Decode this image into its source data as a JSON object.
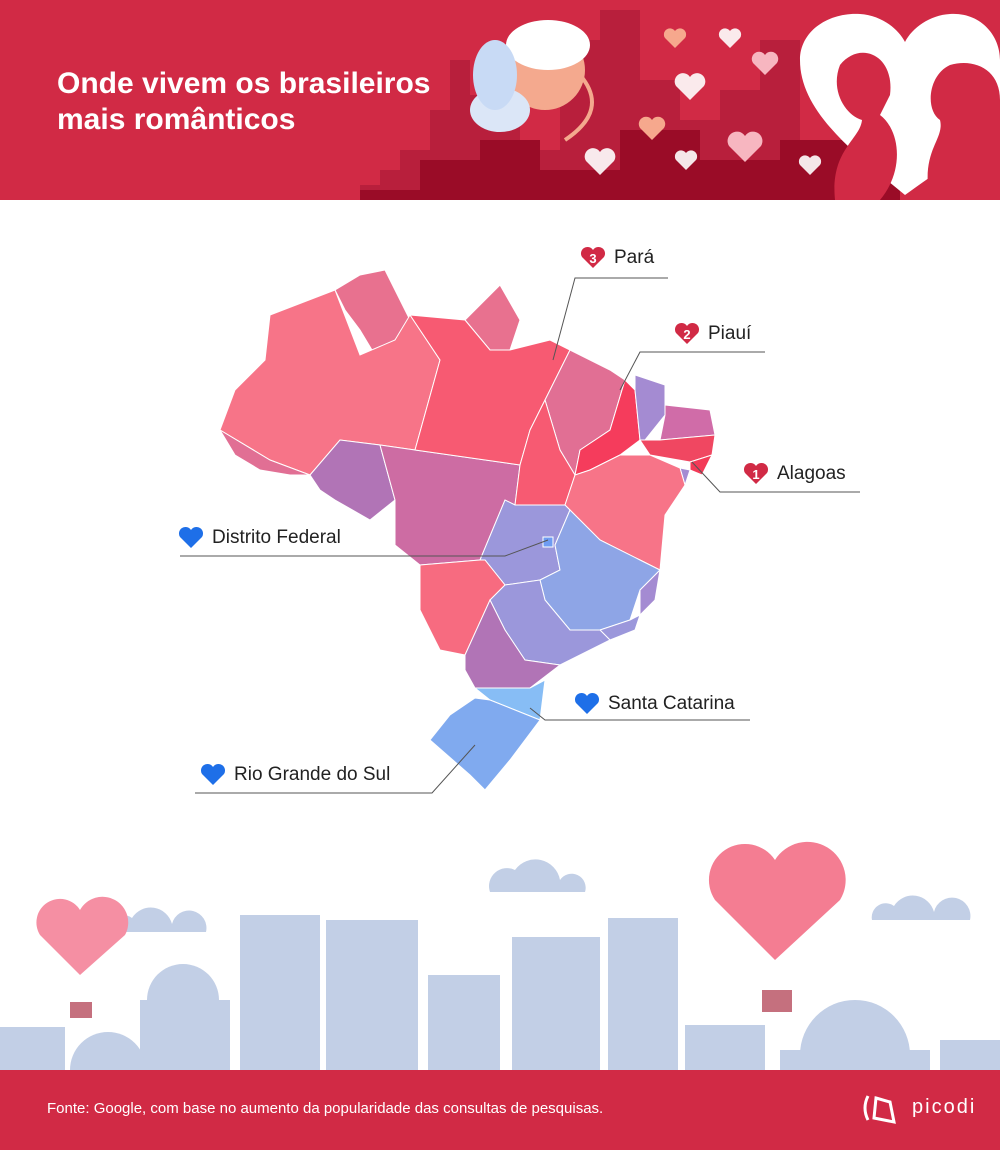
{
  "header": {
    "title": "Onde vivem os brasileiros mais românticos"
  },
  "colors": {
    "brand": "#d12a45",
    "rank_heart": "#d12a45",
    "blue_heart": "#1e6fe8",
    "city": "#c2cfe6"
  },
  "labels": [
    {
      "rank": "3",
      "name": "Pará",
      "icon": "red-heart-icon"
    },
    {
      "rank": "2",
      "name": "Piauí",
      "icon": "red-heart-icon"
    },
    {
      "rank": "1",
      "name": "Alagoas",
      "icon": "red-heart-icon"
    },
    {
      "rank": "",
      "name": "Distrito Federal",
      "icon": "blue-heart-icon"
    },
    {
      "rank": "",
      "name": "Santa Catarina",
      "icon": "blue-heart-icon"
    },
    {
      "rank": "",
      "name": "Rio Grande do Sul",
      "icon": "blue-heart-icon"
    }
  ],
  "footer": {
    "source": "Fonte: Google, com base no aumento da popularidade das consultas de pesquisas.",
    "brand": "picodi"
  }
}
